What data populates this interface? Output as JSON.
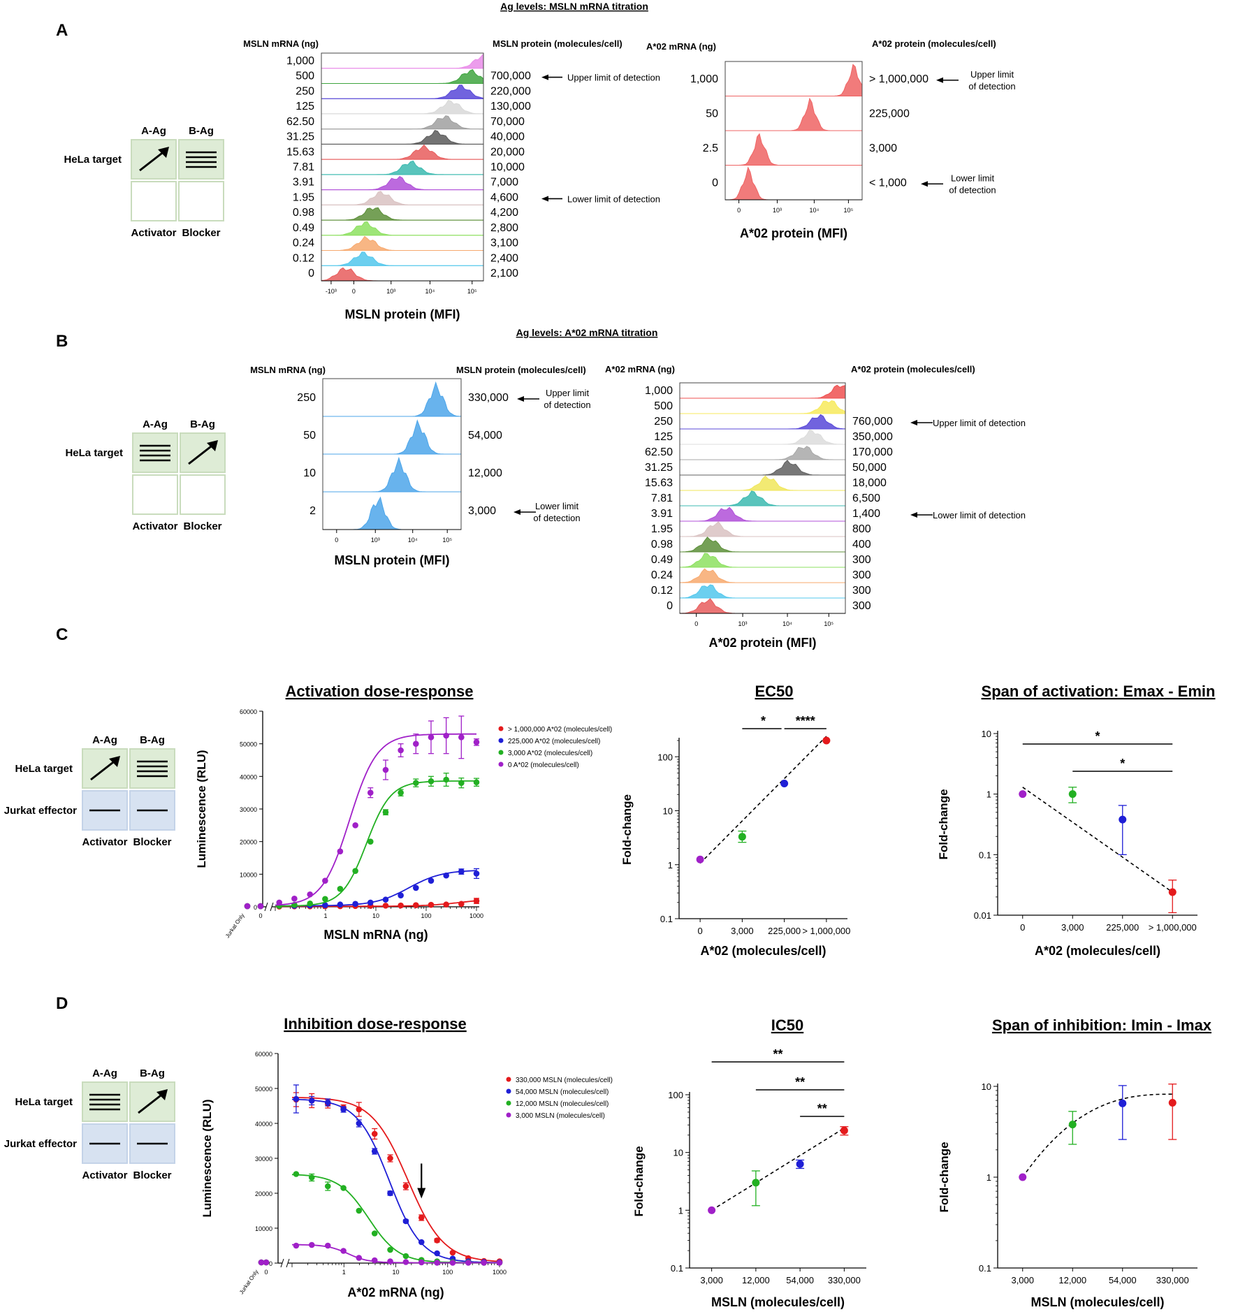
{
  "panels": [
    "A",
    "B",
    "C",
    "D"
  ],
  "panel_A": {
    "header": "Ag levels: MSLN mRNA titration",
    "schematic": {
      "a_ag": "A-Ag",
      "b_ag": "B-Ag",
      "target": "HeLa target",
      "activator": "Activator",
      "blocker": "Blocker"
    },
    "msln": {
      "mrna_header": "MSLN mRNA (ng)",
      "protein_header": "MSLN protein (molecules/cell)",
      "xlabel": "MSLN protein (MFI)",
      "ticks": [
        "-10³",
        "0",
        "10³",
        "10⁴",
        "10⁵"
      ],
      "rows": [
        {
          "mrna": "1,000",
          "protein": "",
          "color": "#e98ce9",
          "peak": 1.0
        },
        {
          "mrna": "500",
          "protein": "700,000",
          "color": "#3fa53f",
          "peak": 0.92
        },
        {
          "mrna": "250",
          "protein": "220,000",
          "color": "#5848d8",
          "peak": 0.86
        },
        {
          "mrna": "125",
          "protein": "130,000",
          "color": "#d8d8d8",
          "peak": 0.8
        },
        {
          "mrna": "62.50",
          "protein": "70,000",
          "color": "#a0a0a0",
          "peak": 0.76
        },
        {
          "mrna": "31.25",
          "protein": "40,000",
          "color": "#5a5a5a",
          "peak": 0.71
        },
        {
          "mrna": "15.63",
          "protein": "20,000",
          "color": "#e85d5d",
          "peak": 0.63
        },
        {
          "mrna": "7.81",
          "protein": "10,000",
          "color": "#3cbab0",
          "peak": 0.55
        },
        {
          "mrna": "3.91",
          "protein": "7,000",
          "color": "#b050d8",
          "peak": 0.47
        },
        {
          "mrna": "1.95",
          "protein": "4,600",
          "color": "#d9c2c2",
          "peak": 0.37
        },
        {
          "mrna": "0.98",
          "protein": "4,200",
          "color": "#5d8f3a",
          "peak": 0.32
        },
        {
          "mrna": "0.49",
          "protein": "2,800",
          "color": "#8de060",
          "peak": 0.27
        },
        {
          "mrna": "0.24",
          "protein": "3,100",
          "color": "#f7a96e",
          "peak": 0.28
        },
        {
          "mrna": "0.12",
          "protein": "2,400",
          "color": "#52c7ec",
          "peak": 0.26
        },
        {
          "mrna": "0",
          "protein": "2,100",
          "color": "#e85d5d",
          "peak": 0.15
        }
      ],
      "upper": "Upper limit of detection",
      "lower": "Lower limit of detection"
    },
    "a02": {
      "mrna_header": "A*02 mRNA (ng)",
      "protein_header": "A*02 protein (molecules/cell)",
      "xlabel": "A*02 protein (MFI)",
      "ticks": [
        "0",
        "10³",
        "10⁴",
        "10⁵"
      ],
      "rows": [
        {
          "mrna": "1,000",
          "protein": "> 1,000,000",
          "color": "#ef6464",
          "peak": 0.94
        },
        {
          "mrna": "50",
          "protein": "225,000",
          "color": "#ef6464",
          "peak": 0.62
        },
        {
          "mrna": "2.5",
          "protein": "3,000",
          "color": "#ef6464",
          "peak": 0.25
        },
        {
          "mrna": "0",
          "protein": "< 1,000",
          "color": "#ef6464",
          "peak": 0.17
        }
      ],
      "upper": [
        "Upper limit",
        "of detection"
      ],
      "lower": [
        "Lower limit",
        "of detection"
      ]
    }
  },
  "panel_B": {
    "header": "Ag levels: A*02 mRNA titration",
    "schematic": {
      "a_ag": "A-Ag",
      "b_ag": "B-Ag",
      "target": "HeLa target",
      "activator": "Activator",
      "blocker": "Blocker"
    },
    "msln": {
      "mrna_header": "MSLN mRNA (ng)",
      "protein_header": "MSLN protein (molecules/cell)",
      "xlabel": "MSLN protein (MFI)",
      "ticks": [
        "0",
        "10³",
        "10⁴",
        "10⁵"
      ],
      "rows": [
        {
          "mrna": "250",
          "protein": "330,000",
          "color": "#4da6ea",
          "peak": 0.82
        },
        {
          "mrna": "50",
          "protein": "54,000",
          "color": "#4da6ea",
          "peak": 0.69
        },
        {
          "mrna": "10",
          "protein": "12,000",
          "color": "#4da6ea",
          "peak": 0.55
        },
        {
          "mrna": "2",
          "protein": "3,000",
          "color": "#4da6ea",
          "peak": 0.4
        }
      ],
      "upper": [
        "Upper limit",
        "of detection"
      ],
      "lower": [
        "Lower limit",
        "of detection"
      ]
    },
    "a02": {
      "mrna_header": "A*02 mRNA (ng)",
      "protein_header": "A*02 protein (molecules/cell)",
      "xlabel": "A*02 protein (MFI)",
      "ticks": [
        "0",
        "10³",
        "10⁴",
        "10⁵"
      ],
      "rows": [
        {
          "mrna": "1,000",
          "protein": "",
          "color": "#ef5050",
          "peak": 0.97
        },
        {
          "mrna": "500",
          "protein": "",
          "color": "#f7ea5c",
          "peak": 0.9
        },
        {
          "mrna": "250",
          "protein": "760,000",
          "color": "#5848d8",
          "peak": 0.84
        },
        {
          "mrna": "125",
          "protein": "350,000",
          "color": "#dcdcdc",
          "peak": 0.8
        },
        {
          "mrna": "62.50",
          "protein": "170,000",
          "color": "#a8a8a8",
          "peak": 0.75
        },
        {
          "mrna": "31.25",
          "protein": "50,000",
          "color": "#606060",
          "peak": 0.66
        },
        {
          "mrna": "15.63",
          "protein": "18,000",
          "color": "#f0e65a",
          "peak": 0.53
        },
        {
          "mrna": "7.81",
          "protein": "6,500",
          "color": "#3cbab0",
          "peak": 0.44
        },
        {
          "mrna": "3.91",
          "protein": "1,400",
          "color": "#b050d8",
          "peak": 0.28
        },
        {
          "mrna": "1.95",
          "protein": "800",
          "color": "#d9c2c2",
          "peak": 0.22
        },
        {
          "mrna": "0.98",
          "protein": "400",
          "color": "#5d8f3a",
          "peak": 0.18
        },
        {
          "mrna": "0.49",
          "protein": "300",
          "color": "#8de060",
          "peak": 0.17
        },
        {
          "mrna": "0.24",
          "protein": "300",
          "color": "#f7a96e",
          "peak": 0.17
        },
        {
          "mrna": "0.12",
          "protein": "300",
          "color": "#52c7ec",
          "peak": 0.17
        },
        {
          "mrna": "0",
          "protein": "300",
          "color": "#e85d5d",
          "peak": 0.17
        }
      ],
      "upper": "Upper limit of detection",
      "lower": "Lower limit of detection"
    }
  },
  "panel_C": {
    "schematic": {
      "a_ag": "A-Ag",
      "b_ag": "B-Ag",
      "target": "HeLa target",
      "effector": "Jurkat effector",
      "activator": "Activator",
      "blocker": "Blocker"
    }
  },
  "panel_D": {
    "schematic": {
      "a_ag": "A-Ag",
      "b_ag": "B-Ag",
      "target": "HeLa target",
      "effector": "Jurkat effector",
      "activator": "Activator",
      "blocker": "Blocker"
    }
  },
  "chart_data": [
    {
      "id": "activation-dose-response",
      "type": "line",
      "title": "Activation dose-response",
      "xlabel": "MSLN mRNA (ng)",
      "ylabel": "Luminescence (RLU)",
      "xscale": "log",
      "xlim": [
        0.1,
        1000
      ],
      "ylim": [
        0,
        60000
      ],
      "yticks": [
        0,
        10000,
        20000,
        30000,
        40000,
        50000,
        60000
      ],
      "xtick_labels": [
        "Jurkat Only",
        "0",
        "1",
        "10",
        "100",
        "1000"
      ],
      "x": [
        0.12,
        0.24,
        0.49,
        0.98,
        1.95,
        3.91,
        7.81,
        15.63,
        31.25,
        62.5,
        125,
        250,
        500,
        1000
      ],
      "series": [
        {
          "name": "> 1,000,000 A*02 (molecules/cell)",
          "color": "#e41a1c",
          "baseline": [
            200,
            200
          ],
          "values": [
            100,
            150,
            150,
            200,
            200,
            250,
            300,
            350,
            400,
            500,
            600,
            700,
            900,
            1800
          ],
          "errors": [
            0,
            0,
            0,
            0,
            0,
            0,
            0,
            0,
            0,
            0,
            0,
            0,
            0,
            800
          ],
          "fit": {
            "bottom": 150,
            "top": 2600,
            "ec50": 500,
            "hill": 1.2
          }
        },
        {
          "name": "225,000 A*02 (molecules/cell)",
          "color": "#1f1fd6",
          "baseline": [
            200,
            200
          ],
          "values": [
            300,
            300,
            400,
            500,
            700,
            900,
            1300,
            2200,
            3500,
            5800,
            8000,
            9600,
            10800,
            10200
          ],
          "errors": [
            0,
            0,
            0,
            0,
            0,
            0,
            0,
            0,
            0,
            0,
            0,
            0,
            800,
            1500
          ],
          "fit": {
            "bottom": 300,
            "top": 11300,
            "ec50": 45,
            "hill": 1.3
          }
        },
        {
          "name": "3,000 A*02 (molecules/cell)",
          "color": "#22b022",
          "baseline": [
            200,
            200
          ],
          "values": [
            300,
            600,
            1000,
            2400,
            5500,
            11000,
            20000,
            29000,
            35000,
            38000,
            38500,
            39000,
            38000,
            38200
          ],
          "errors": [
            0,
            0,
            0,
            0,
            0,
            0,
            0,
            800,
            1000,
            1200,
            1500,
            2000,
            1500,
            1200
          ],
          "fit": {
            "bottom": 200,
            "top": 38600,
            "ec50": 6.5,
            "hill": 1.8
          }
        },
        {
          "name": "0 A*02 (molecules/cell)",
          "color": "#a020c8",
          "baseline": [
            200,
            200
          ],
          "values": [
            1300,
            2500,
            3800,
            8000,
            17000,
            25000,
            35000,
            42000,
            48000,
            50000,
            52000,
            52500,
            52000,
            50500
          ],
          "errors": [
            0,
            0,
            0,
            0,
            0,
            0,
            1500,
            3000,
            2000,
            3000,
            5000,
            5500,
            6500,
            1000
          ],
          "fit": {
            "bottom": 300,
            "top": 53000,
            "ec50": 3.0,
            "hill": 1.6
          }
        }
      ]
    },
    {
      "id": "ec50",
      "type": "scatter",
      "title": "EC50",
      "xlabel": "A*02 (molecules/cell)",
      "ylabel": "Fold-change",
      "yscale": "log",
      "ylim": [
        0.1,
        200
      ],
      "ytick_labels": [
        "0.1",
        "1",
        "10",
        "100"
      ],
      "categories": [
        "0",
        "3,000",
        "225,000",
        "> 1,000,000"
      ],
      "values": [
        1.25,
        3.3,
        32,
        200
      ],
      "errors_low": [
        1.25,
        2.6,
        32,
        200
      ],
      "errors_high": [
        1.25,
        4.2,
        32,
        200
      ],
      "colors": [
        "#a020c8",
        "#22b022",
        "#1f1fd6",
        "#e41a1c"
      ],
      "significance": [
        {
          "from": 1,
          "to": 2,
          "label": "*"
        },
        {
          "from": 2,
          "to": 3,
          "label": "****"
        }
      ]
    },
    {
      "id": "span-activation",
      "type": "scatter",
      "title": "Span of activation: Emax - Emin",
      "xlabel": "A*02 (molecules/cell)",
      "ylabel": "Fold-change",
      "yscale": "log",
      "ylim": [
        0.01,
        10
      ],
      "ytick_labels": [
        "0.01",
        "0.1",
        "1",
        "10"
      ],
      "categories": [
        "0",
        "3,000",
        "225,000",
        "> 1,000,000"
      ],
      "values": [
        1.0,
        1.0,
        0.38,
        0.024
      ],
      "errors_low": [
        1.0,
        0.72,
        0.1,
        0.011
      ],
      "errors_high": [
        1.0,
        1.3,
        0.65,
        0.038
      ],
      "colors": [
        "#a020c8",
        "#22b022",
        "#1f1fd6",
        "#e41a1c"
      ],
      "significance": [
        {
          "from": 0,
          "to": 3,
          "label": "*"
        },
        {
          "from": 1,
          "to": 3,
          "label": "*"
        }
      ]
    },
    {
      "id": "inhibition-dose-response",
      "type": "line",
      "title": "Inhibition dose-response",
      "xlabel": "A*02 mRNA (ng)",
      "ylabel": "Luminescence (RLU)",
      "xscale": "log",
      "xlim": [
        0.1,
        1000
      ],
      "ylim": [
        0,
        60000
      ],
      "yticks": [
        0,
        10000,
        20000,
        30000,
        40000,
        50000,
        60000
      ],
      "xtick_labels": [
        "Jurkat Only",
        "0",
        "1",
        "10",
        "100",
        "1000"
      ],
      "x": [
        0.12,
        0.24,
        0.49,
        0.98,
        1.95,
        3.91,
        7.81,
        15.63,
        31.25,
        62.5,
        125,
        250,
        500,
        1000
      ],
      "series": [
        {
          "name": "330,000 MSLN (molecules/cell)",
          "color": "#e41a1c",
          "baseline": [
            200,
            200
          ],
          "values": [
            46800,
            46500,
            45600,
            44500,
            44000,
            37000,
            30000,
            22000,
            13000,
            6500,
            3000,
            1400,
            600,
            500
          ],
          "errors": [
            2000,
            2000,
            1200,
            800,
            2000,
            1500,
            1000,
            1000,
            800,
            500,
            0,
            0,
            0,
            0
          ],
          "fit": {
            "bottom": 200,
            "top": 47500,
            "ec50": 17,
            "hill": 1.25
          }
        },
        {
          "name": "54,000 MSLN (molecules/cell)",
          "color": "#1f1fd6",
          "baseline": [
            200,
            200
          ],
          "values": [
            47000,
            46500,
            46000,
            44000,
            40000,
            32000,
            20000,
            12000,
            6000,
            2800,
            1300,
            500,
            300,
            200
          ],
          "errors": [
            4000,
            1200,
            1000,
            800,
            1000,
            800,
            600,
            400,
            0,
            0,
            0,
            0,
            0,
            0
          ],
          "fit": {
            "bottom": 100,
            "top": 47000,
            "ec50": 7.5,
            "hill": 1.4
          }
        },
        {
          "name": "12,000 MSLN (molecules/cell)",
          "color": "#22b022",
          "baseline": [
            200,
            200
          ],
          "values": [
            25500,
            24500,
            22000,
            21500,
            15000,
            8500,
            3800,
            2000,
            900,
            500,
            300,
            200,
            100,
            100
          ],
          "errors": [
            0,
            1000,
            1200,
            0,
            0,
            0,
            0,
            0,
            0,
            0,
            0,
            0,
            0,
            0
          ],
          "fit": {
            "bottom": 100,
            "top": 25500,
            "ec50": 3.0,
            "hill": 1.5
          }
        },
        {
          "name": "3,000 MSLN (molecules/cell)",
          "color": "#a020c8",
          "baseline": [
            200,
            200
          ],
          "values": [
            5000,
            5200,
            5000,
            3500,
            1500,
            800,
            500,
            300,
            200,
            100,
            100,
            100,
            100,
            100
          ],
          "errors": [
            0,
            0,
            0,
            0,
            0,
            0,
            0,
            0,
            0,
            0,
            0,
            0,
            0,
            0
          ],
          "fit": {
            "bottom": 100,
            "top": 5300,
            "ec50": 1.2,
            "hill": 2.2
          }
        }
      ],
      "arrow_x": 31.25
    },
    {
      "id": "ic50",
      "type": "scatter",
      "title": "IC50",
      "xlabel": "MSLN (molecules/cell)",
      "ylabel": "Fold-change",
      "yscale": "log",
      "ylim": [
        0.1,
        100
      ],
      "ytick_labels": [
        "0.1",
        "1",
        "10",
        "100"
      ],
      "categories": [
        "3,000",
        "12,000",
        "54,000",
        "330,000"
      ],
      "values": [
        1.0,
        3.0,
        6.3,
        24
      ],
      "errors_low": [
        1.0,
        1.2,
        5.3,
        20
      ],
      "errors_high": [
        1.0,
        4.8,
        7.4,
        28
      ],
      "colors": [
        "#a020c8",
        "#22b022",
        "#1f1fd6",
        "#e41a1c"
      ],
      "significance": [
        {
          "from": 0,
          "to": 3,
          "label": "**"
        },
        {
          "from": 1,
          "to": 3,
          "label": "**"
        },
        {
          "from": 2,
          "to": 3,
          "label": "**"
        }
      ]
    },
    {
      "id": "span-inhibition",
      "type": "scatter",
      "title": "Span of inhibition: Imin - Imax",
      "xlabel": "MSLN (molecules/cell)",
      "ylabel": "Fold-change",
      "yscale": "log",
      "ylim": [
        0.1,
        10
      ],
      "ytick_labels": [
        "0.1",
        "1",
        "10"
      ],
      "categories": [
        "3,000",
        "12,000",
        "54,000",
        "330,000"
      ],
      "values": [
        1.0,
        3.8,
        6.5,
        6.6
      ],
      "errors_low": [
        1.0,
        2.3,
        2.6,
        2.6
      ],
      "errors_high": [
        1.0,
        5.3,
        10.2,
        10.6
      ],
      "colors": [
        "#a020c8",
        "#22b022",
        "#1f1fd6",
        "#e41a1c"
      ],
      "significance": []
    }
  ]
}
